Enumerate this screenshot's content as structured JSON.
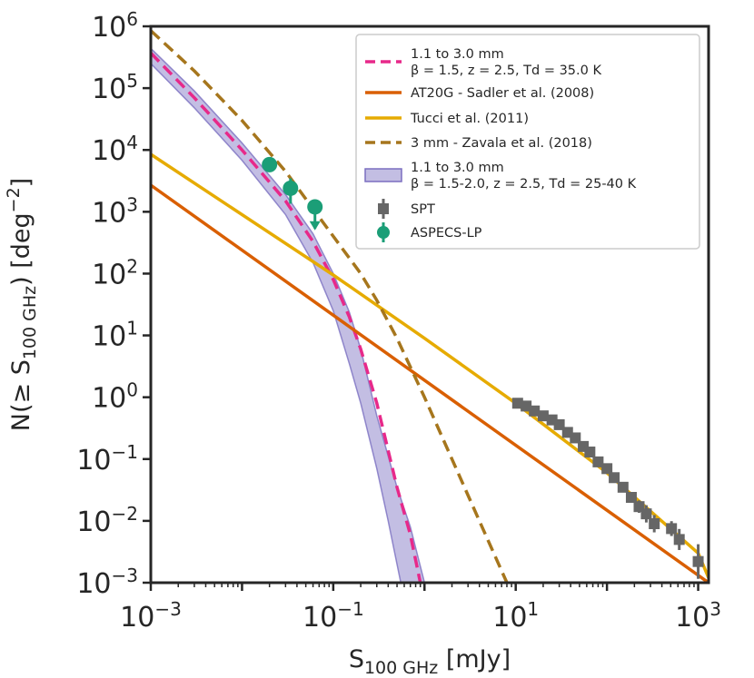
{
  "chart_data": {
    "type": "line",
    "x_scale": "log",
    "y_scale": "log",
    "xlim": [
      0.001,
      1300
    ],
    "ylim": [
      0.001,
      1000000
    ],
    "xlabel": {
      "main": "S",
      "sub": "100 GHz",
      "unit": " [mJy]"
    },
    "ylabel": {
      "pre": "N(≥ S",
      "sub": "100 GHz",
      "post": ") [deg",
      "sup": "−2",
      "end": "]"
    },
    "x_ticks": [
      {
        "value": 0.001,
        "base": "10",
        "exp": "−3"
      },
      {
        "value": 0.1,
        "base": "10",
        "exp": "−1"
      },
      {
        "value": 10,
        "base": "10",
        "exp": "1"
      },
      {
        "value": 1000,
        "base": "10",
        "exp": "3"
      }
    ],
    "y_ticks": [
      {
        "value": 0.001,
        "base": "10",
        "exp": "−3"
      },
      {
        "value": 0.01,
        "base": "10",
        "exp": "−2"
      },
      {
        "value": 0.1,
        "base": "10",
        "exp": "−1"
      },
      {
        "value": 1,
        "base": "10",
        "exp": "0"
      },
      {
        "value": 10,
        "base": "10",
        "exp": "1"
      },
      {
        "value": 100,
        "base": "10",
        "exp": "2"
      },
      {
        "value": 1000,
        "base": "10",
        "exp": "3"
      },
      {
        "value": 10000,
        "base": "10",
        "exp": "4"
      },
      {
        "value": 100000,
        "base": "10",
        "exp": "5"
      },
      {
        "value": 1000000,
        "base": "10",
        "exp": "6"
      }
    ],
    "series": [
      {
        "name": "1.1 to 3.0 mm β = 1.5-2.0, z = 2.5, Td = 25-40 K",
        "kind": "band",
        "color": "#7b6fc0",
        "upper": [
          [
            0.001,
            440000
          ],
          [
            0.003,
            90000
          ],
          [
            0.01,
            13000
          ],
          [
            0.03,
            1900
          ],
          [
            0.06,
            440
          ],
          [
            0.1,
            100
          ],
          [
            0.15,
            24
          ],
          [
            0.2,
            6
          ],
          [
            0.3,
            0.5
          ],
          [
            0.5,
            0.035
          ],
          [
            0.7,
            0.008
          ],
          [
            1.0,
            0.001
          ]
        ],
        "lower": [
          [
            0.001,
            250000
          ],
          [
            0.003,
            48000
          ],
          [
            0.01,
            6800
          ],
          [
            0.03,
            900
          ],
          [
            0.06,
            150
          ],
          [
            0.1,
            25
          ],
          [
            0.15,
            3.5
          ],
          [
            0.2,
            0.8
          ],
          [
            0.3,
            0.07
          ],
          [
            0.4,
            0.01
          ],
          [
            0.55,
            0.001
          ]
        ]
      },
      {
        "name": "1.1 to 3.0 mm β = 1.5, z = 2.5, Td = 35.0 K",
        "kind": "line",
        "dash": "dashed",
        "color": "#e7298a",
        "points": [
          [
            0.001,
            370000
          ],
          [
            0.003,
            70000
          ],
          [
            0.01,
            10000
          ],
          [
            0.03,
            1500
          ],
          [
            0.06,
            330
          ],
          [
            0.1,
            80
          ],
          [
            0.15,
            20
          ],
          [
            0.2,
            6
          ],
          [
            0.3,
            0.8
          ],
          [
            0.5,
            0.035
          ],
          [
            0.7,
            0.006
          ],
          [
            0.9,
            0.001
          ]
        ]
      },
      {
        "name": "AT20G - Sadler et al. (2008)",
        "kind": "line",
        "dash": "solid",
        "color": "#d95f02",
        "points": [
          [
            0.001,
            2700
          ],
          [
            1300,
            0.001
          ]
        ]
      },
      {
        "name": "Tucci et al. (2011)",
        "kind": "line",
        "dash": "solid",
        "color": "#e6ab02",
        "points": [
          [
            0.001,
            8500
          ],
          [
            0.1,
            95
          ],
          [
            1,
            9
          ],
          [
            10,
            0.8
          ],
          [
            100,
            0.06
          ],
          [
            1000,
            0.003
          ],
          [
            1300,
            0.0012
          ]
        ]
      },
      {
        "name": "3 mm - Zavala et al. (2018)",
        "kind": "line",
        "dash": "dashed",
        "color": "#a6761d",
        "points": [
          [
            0.001,
            850000
          ],
          [
            0.003,
            190000
          ],
          [
            0.01,
            30000
          ],
          [
            0.03,
            4500
          ],
          [
            0.1,
            400
          ],
          [
            0.2,
            100
          ],
          [
            0.3,
            37
          ],
          [
            0.5,
            9
          ],
          [
            1,
            1
          ],
          [
            2,
            0.1
          ],
          [
            4,
            0.01
          ],
          [
            8,
            0.001
          ]
        ]
      }
    ],
    "points": [
      {
        "name": "SPT",
        "marker": "square",
        "color": "#666666",
        "data": [
          {
            "x": 10.5,
            "y": 0.8,
            "err": 0.05
          },
          {
            "x": 13,
            "y": 0.72,
            "err": 0.05
          },
          {
            "x": 16,
            "y": 0.6,
            "err": 0.05
          },
          {
            "x": 20,
            "y": 0.5,
            "err": 0.05
          },
          {
            "x": 25,
            "y": 0.43,
            "err": 0.05
          },
          {
            "x": 30,
            "y": 0.36,
            "err": 0.05
          },
          {
            "x": 37,
            "y": 0.27,
            "err": 0.05
          },
          {
            "x": 45,
            "y": 0.22,
            "err": 0.05
          },
          {
            "x": 55,
            "y": 0.16,
            "err": 0.05
          },
          {
            "x": 65,
            "y": 0.13,
            "err": 0.05
          },
          {
            "x": 80,
            "y": 0.09,
            "err": 0.05
          },
          {
            "x": 100,
            "y": 0.07,
            "err": 0.06
          },
          {
            "x": 120,
            "y": 0.05,
            "err": 0.06
          },
          {
            "x": 150,
            "y": 0.035,
            "err": 0.06
          },
          {
            "x": 185,
            "y": 0.024,
            "err": 0.08
          },
          {
            "x": 225,
            "y": 0.017,
            "err": 0.1
          },
          {
            "x": 270,
            "y": 0.013,
            "err": 0.14
          },
          {
            "x": 330,
            "y": 0.009,
            "err": 0.14
          },
          {
            "x": 510,
            "y": 0.0075,
            "err": 0.12
          },
          {
            "x": 620,
            "y": 0.005,
            "err": 0.17
          },
          {
            "x": 1000,
            "y": 0.0022,
            "err": 0.28
          }
        ]
      },
      {
        "name": "ASPECS-LP",
        "marker": "circle",
        "color": "#1b9e77",
        "data": [
          {
            "x": 0.02,
            "y": 5800,
            "err_up": 0.08,
            "err_down": 0.1
          },
          {
            "x": 0.034,
            "y": 2400,
            "err_up": 0.16,
            "err_down": 0.25
          },
          {
            "x": 0.063,
            "y": 1200,
            "err_up": 0.12,
            "err_down": 0.35,
            "upper_limit": true
          }
        ]
      }
    ],
    "legend": {
      "position": "top-right",
      "entries": [
        {
          "type": "dashed-line",
          "color": "#e7298a",
          "line1": "1.1 to 3.0 mm",
          "line2": "β = 1.5, z = 2.5, Td = 35.0 K"
        },
        {
          "type": "line",
          "color": "#d95f02",
          "line1": "AT20G - Sadler et al. (2008)"
        },
        {
          "type": "line",
          "color": "#e6ab02",
          "line1": "Tucci et al. (2011)"
        },
        {
          "type": "dashed-line",
          "color": "#a6761d",
          "line1": "3 mm - Zavala et al. (2018)"
        },
        {
          "type": "patch",
          "color": "#7b6fc0",
          "line1": "1.1 to 3.0 mm",
          "line2": "β = 1.5-2.0, z = 2.5, Td = 25-40 K"
        },
        {
          "type": "square",
          "color": "#666666",
          "line1": "SPT"
        },
        {
          "type": "circle",
          "color": "#1b9e77",
          "line1": "ASPECS-LP"
        }
      ]
    }
  }
}
